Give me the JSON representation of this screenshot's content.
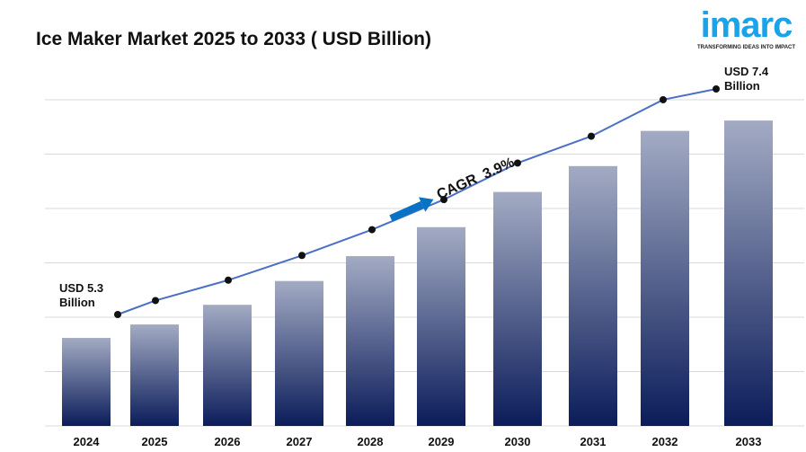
{
  "chart_data": {
    "type": "bar",
    "title": "Ice Maker Market 2025 to 2033 ( USD Billion)",
    "categories": [
      "2024",
      "2025",
      "2026",
      "2027",
      "2028",
      "2029",
      "2030",
      "2031",
      "2032",
      "2033"
    ],
    "values": [
      5.3,
      5.43,
      5.62,
      5.85,
      6.09,
      6.37,
      6.71,
      6.96,
      7.3,
      7.4
    ],
    "overlay_line": true,
    "grid": true,
    "annotations": {
      "start": "USD 5.3",
      "start_unit": "Billion",
      "end": "USD 7.4",
      "end_unit": "Billion",
      "cagr": "CAGR  3.9%"
    },
    "colors": {
      "bar_top": "#a3abc3",
      "bar_bottom": "#0b1c5a",
      "line": "#4a6fc4",
      "arrow": "#0a72c4",
      "grid": "#d9d9d9"
    }
  },
  "logo": {
    "word": "imarc",
    "tagline": "TRANSFORMING IDEAS INTO IMPACT"
  }
}
